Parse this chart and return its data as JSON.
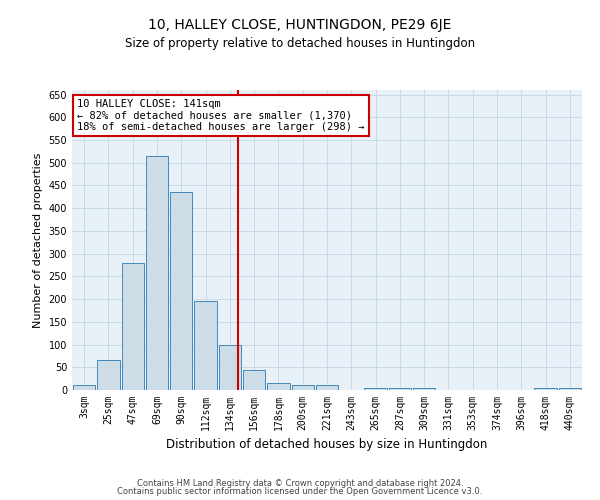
{
  "title": "10, HALLEY CLOSE, HUNTINGDON, PE29 6JE",
  "subtitle": "Size of property relative to detached houses in Huntingdon",
  "xlabel": "Distribution of detached houses by size in Huntingdon",
  "ylabel": "Number of detached properties",
  "footer1": "Contains HM Land Registry data © Crown copyright and database right 2024.",
  "footer2": "Contains public sector information licensed under the Open Government Licence v3.0.",
  "bin_labels": [
    "3sqm",
    "25sqm",
    "47sqm",
    "69sqm",
    "90sqm",
    "112sqm",
    "134sqm",
    "156sqm",
    "178sqm",
    "200sqm",
    "221sqm",
    "243sqm",
    "265sqm",
    "287sqm",
    "309sqm",
    "331sqm",
    "353sqm",
    "374sqm",
    "396sqm",
    "418sqm",
    "440sqm"
  ],
  "bar_values": [
    10,
    65,
    280,
    515,
    435,
    195,
    100,
    45,
    15,
    10,
    10,
    0,
    5,
    5,
    5,
    0,
    0,
    0,
    0,
    5,
    5
  ],
  "bar_color": "#ccdde8",
  "bar_edge_color": "#4488bb",
  "grid_color": "#c8dae8",
  "bg_color": "#e8f0f8",
  "red_line_x": 6.32,
  "red_line_color": "#cc0000",
  "annotation_text": "10 HALLEY CLOSE: 141sqm\n← 82% of detached houses are smaller (1,370)\n18% of semi-detached houses are larger (298) →",
  "annotation_box_color": "#ffffff",
  "annotation_box_edge": "#cc0000",
  "ylim": [
    0,
    660
  ],
  "yticks": [
    0,
    50,
    100,
    150,
    200,
    250,
    300,
    350,
    400,
    450,
    500,
    550,
    600,
    650
  ],
  "title_fontsize": 10,
  "subtitle_fontsize": 8.5,
  "ylabel_fontsize": 8,
  "xlabel_fontsize": 8.5,
  "tick_fontsize": 7,
  "footer_fontsize": 6,
  "annot_fontsize": 7.5
}
